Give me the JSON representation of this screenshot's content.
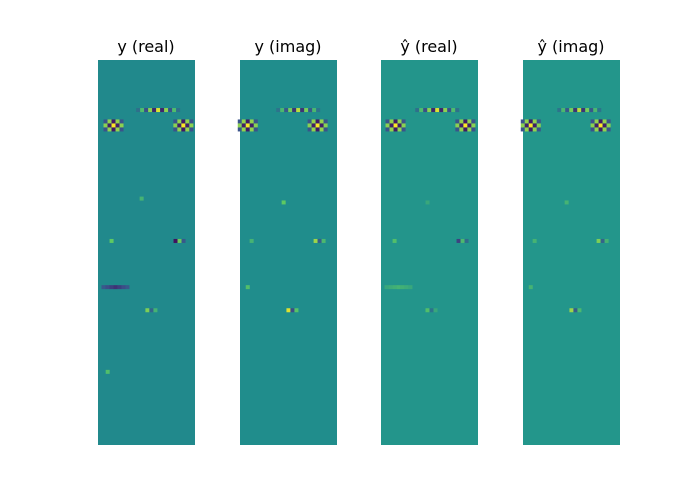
{
  "chart_data": [
    {
      "type": "heatmap",
      "title": "y (real)",
      "colormap": "viridis",
      "base_color": "#21898c",
      "axes_visible": false,
      "features": [
        {
          "row": 0.13,
          "col": 0.62,
          "value": 0.9,
          "kind": "ripple"
        },
        {
          "row": 0.17,
          "col": 0.16,
          "value": 1.0,
          "kind": "checker"
        },
        {
          "row": 0.17,
          "col": 0.88,
          "value": 1.0,
          "kind": "checker"
        },
        {
          "row": 0.36,
          "col": 0.45,
          "value": 0.3,
          "kind": "dot"
        },
        {
          "row": 0.47,
          "col": 0.14,
          "value": 0.5,
          "kind": "dot"
        },
        {
          "row": 0.47,
          "col": 0.82,
          "value": -0.9,
          "kind": "pair"
        },
        {
          "row": 0.59,
          "col": 0.18,
          "value": -0.7,
          "kind": "streak"
        },
        {
          "row": 0.65,
          "col": 0.53,
          "value": 0.6,
          "kind": "pair"
        },
        {
          "row": 0.81,
          "col": 0.1,
          "value": 0.4,
          "kind": "dot"
        }
      ]
    },
    {
      "type": "heatmap",
      "title": "y (imag)",
      "colormap": "viridis",
      "base_color": "#208d8c",
      "axes_visible": false,
      "features": [
        {
          "row": 0.13,
          "col": 0.6,
          "value": 0.8,
          "kind": "ripple"
        },
        {
          "row": 0.17,
          "col": 0.08,
          "value": 1.0,
          "kind": "checker"
        },
        {
          "row": 0.17,
          "col": 0.8,
          "value": 1.0,
          "kind": "checker"
        },
        {
          "row": 0.37,
          "col": 0.45,
          "value": 0.5,
          "kind": "dot"
        },
        {
          "row": 0.47,
          "col": 0.12,
          "value": 0.3,
          "kind": "dot"
        },
        {
          "row": 0.47,
          "col": 0.8,
          "value": 0.7,
          "kind": "pair"
        },
        {
          "row": 0.59,
          "col": 0.08,
          "value": 0.4,
          "kind": "dot"
        },
        {
          "row": 0.65,
          "col": 0.52,
          "value": 0.9,
          "kind": "pair"
        }
      ]
    },
    {
      "type": "heatmap",
      "title": "ŷ (real)",
      "colormap": "viridis",
      "base_color": "#23958b",
      "axes_visible": false,
      "features": [
        {
          "row": 0.13,
          "col": 0.58,
          "value": 0.9,
          "kind": "ripple"
        },
        {
          "row": 0.17,
          "col": 0.15,
          "value": 1.0,
          "kind": "checker"
        },
        {
          "row": 0.17,
          "col": 0.87,
          "value": 1.0,
          "kind": "checker"
        },
        {
          "row": 0.37,
          "col": 0.48,
          "value": 0.2,
          "kind": "dot"
        },
        {
          "row": 0.47,
          "col": 0.14,
          "value": 0.4,
          "kind": "dot"
        },
        {
          "row": 0.47,
          "col": 0.82,
          "value": -0.6,
          "kind": "pair"
        },
        {
          "row": 0.59,
          "col": 0.18,
          "value": 0.3,
          "kind": "streak"
        },
        {
          "row": 0.65,
          "col": 0.5,
          "value": 0.4,
          "kind": "pair"
        }
      ]
    },
    {
      "type": "heatmap",
      "title": "ŷ (imag)",
      "colormap": "viridis",
      "base_color": "#23968b",
      "axes_visible": false,
      "features": [
        {
          "row": 0.13,
          "col": 0.58,
          "value": 0.8,
          "kind": "ripple"
        },
        {
          "row": 0.17,
          "col": 0.08,
          "value": 1.0,
          "kind": "checker"
        },
        {
          "row": 0.17,
          "col": 0.8,
          "value": 1.0,
          "kind": "checker"
        },
        {
          "row": 0.37,
          "col": 0.45,
          "value": 0.3,
          "kind": "dot"
        },
        {
          "row": 0.47,
          "col": 0.12,
          "value": 0.3,
          "kind": "dot"
        },
        {
          "row": 0.47,
          "col": 0.8,
          "value": 0.6,
          "kind": "pair"
        },
        {
          "row": 0.59,
          "col": 0.08,
          "value": 0.3,
          "kind": "dot"
        },
        {
          "row": 0.65,
          "col": 0.52,
          "value": 0.7,
          "kind": "pair"
        }
      ]
    }
  ]
}
